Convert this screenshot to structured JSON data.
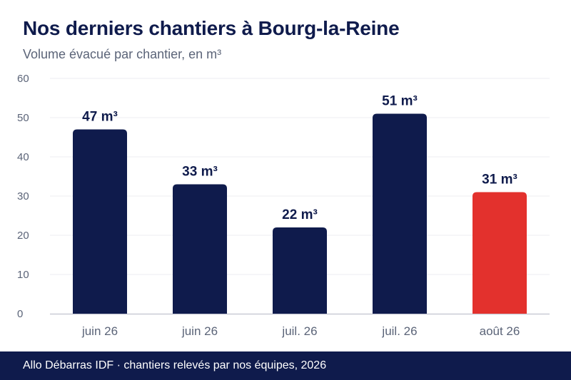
{
  "header": {
    "title": "Nos derniers chantiers à Bourg-la-Reine",
    "subtitle": "Volume évacué par chantier, en m³"
  },
  "footer": {
    "text": "Allo Débarras IDF · chantiers relevés par nos équipes, 2026"
  },
  "colors": {
    "bar_default": "#0f1b4c",
    "bar_highlight": "#e3312d",
    "label": "#0f1b4c",
    "grid": "#ececf1",
    "axis": "#c9cbd6",
    "tick": "#5b6478"
  },
  "chart_data": {
    "type": "bar",
    "title": "Nos derniers chantiers à Bourg-la-Reine",
    "subtitle": "Volume évacué par chantier, en m³",
    "xlabel": "",
    "ylabel": "",
    "categories": [
      "juin 26",
      "juin 26",
      "juil. 26",
      "juil. 26",
      "août 26"
    ],
    "values": [
      47,
      33,
      22,
      51,
      31
    ],
    "value_labels": [
      "47 m³",
      "33 m³",
      "22 m³",
      "51 m³",
      "31 m³"
    ],
    "highlight_index": 4,
    "ylim": [
      0,
      60
    ],
    "yticks": [
      0,
      10,
      20,
      30,
      40,
      50,
      60
    ],
    "grid": true,
    "legend": "none"
  }
}
